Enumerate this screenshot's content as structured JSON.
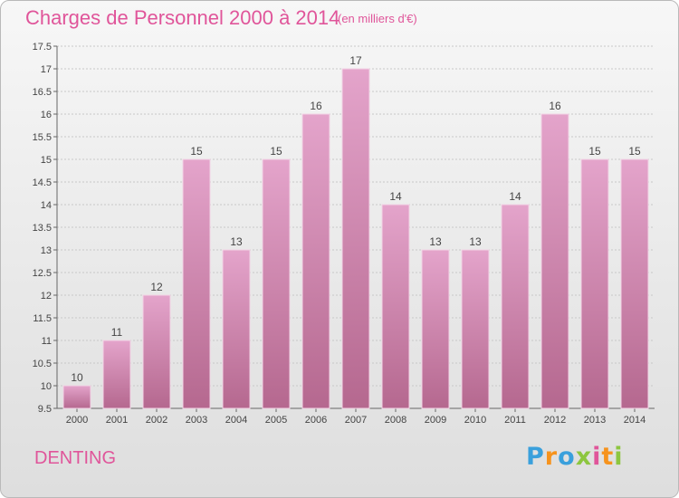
{
  "header": {
    "title": "Charges de Personnel 2000 à 2014",
    "subtitle": "(en milliers d'€)"
  },
  "footer": {
    "town": "DENTING",
    "logo": [
      "P",
      "r",
      "o",
      "x",
      "i",
      "t",
      "i"
    ]
  },
  "colors": {
    "bar_top": "#e4a4cb",
    "bar_bottom": "#b5688f",
    "title": "#e0559a",
    "logo": [
      "#3aa0dc",
      "#f6931d",
      "#3aa0dc",
      "#8dc63f",
      "#e0559a",
      "#f6931d",
      "#8dc63f"
    ]
  },
  "chart_data": {
    "type": "bar",
    "title": "Charges de Personnel 2000 à 2014",
    "categories": [
      "2000",
      "2001",
      "2002",
      "2003",
      "2004",
      "2005",
      "2006",
      "2007",
      "2008",
      "2009",
      "2010",
      "2011",
      "2012",
      "2013",
      "2014"
    ],
    "values": [
      10,
      11,
      12,
      15,
      13,
      15,
      16,
      17,
      14,
      13,
      13,
      14,
      16,
      15,
      15
    ],
    "data_labels": [
      "10",
      "11",
      "12",
      "15",
      "13",
      "15",
      "16",
      "17",
      "14",
      "13",
      "13",
      "14",
      "16",
      "15",
      "15"
    ],
    "ylim": [
      9.5,
      17.5
    ],
    "yticks": [
      9.5,
      10,
      10.5,
      11,
      11.5,
      12,
      12.5,
      13,
      13.5,
      14,
      14.5,
      15,
      15.5,
      16,
      16.5,
      17,
      17.5
    ],
    "ytick_labels": [
      "9.5",
      "10",
      "10.5",
      "11",
      "11.5",
      "12",
      "12.5",
      "13",
      "13.5",
      "14",
      "14.5",
      "15",
      "15.5",
      "16",
      "16.5",
      "17",
      "17.5"
    ],
    "grid": true
  }
}
